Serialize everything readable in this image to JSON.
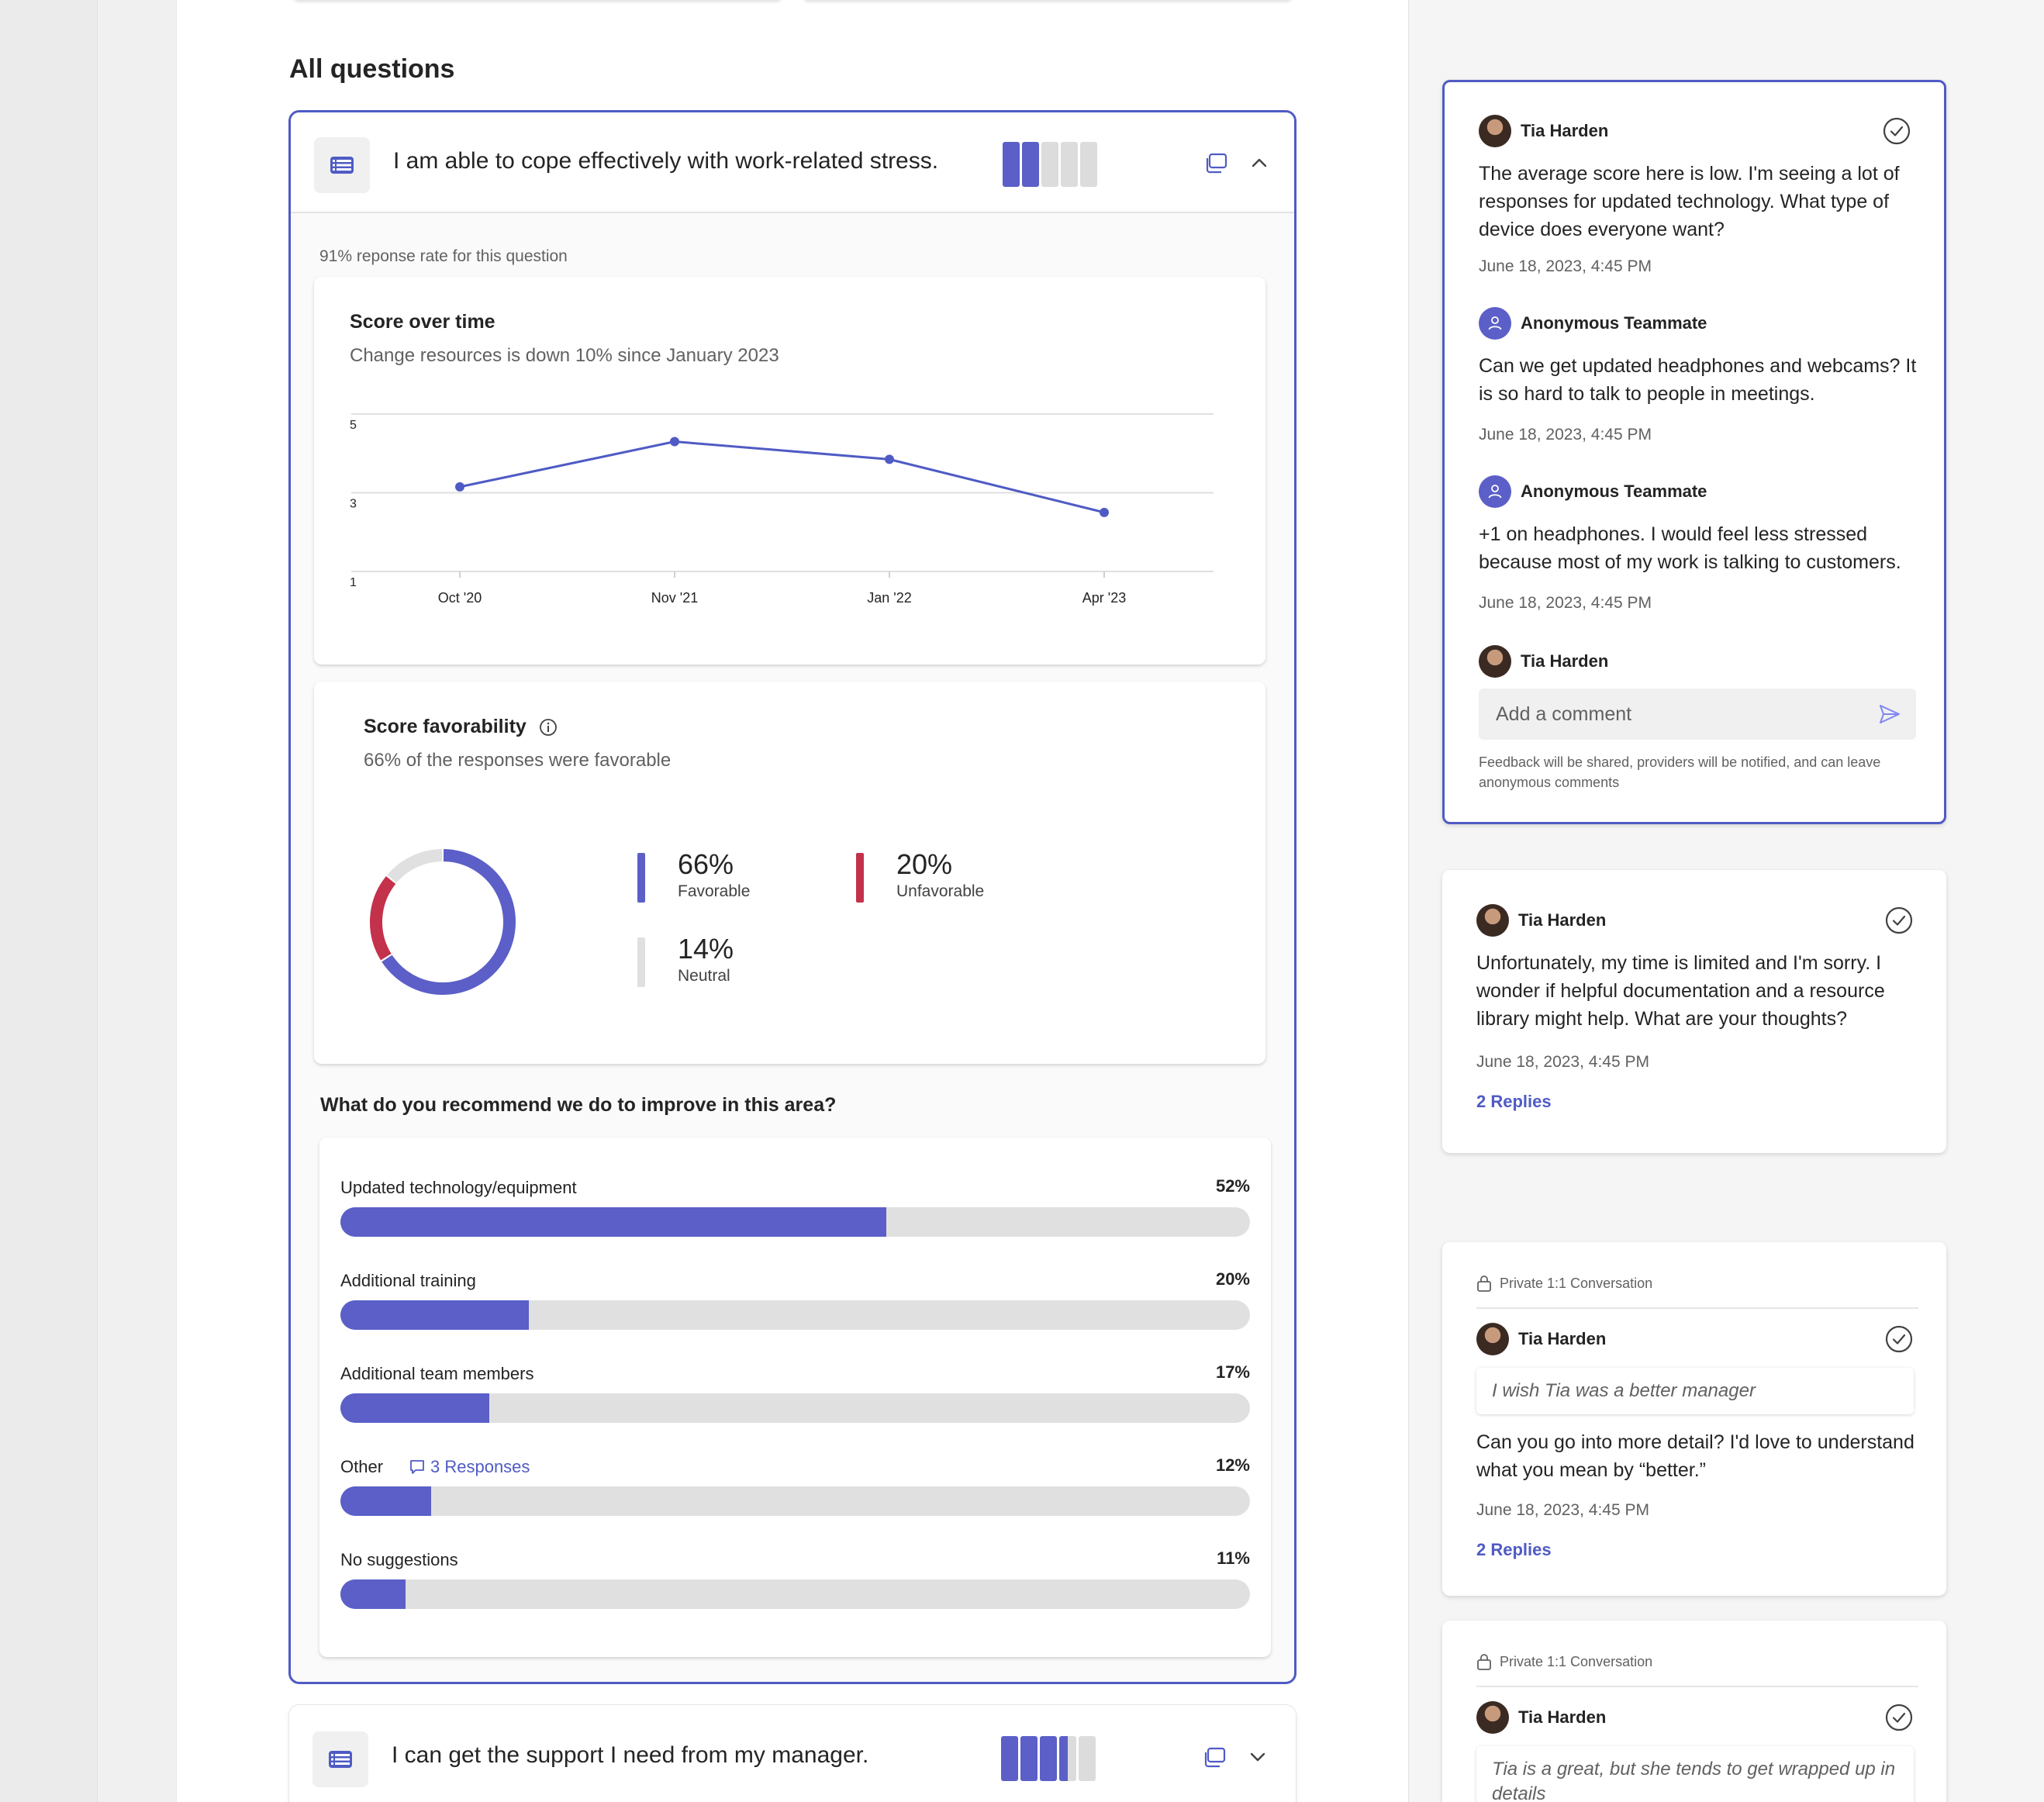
{
  "section_title": "All questions",
  "questions": [
    {
      "text": "I am able to cope effectively with work-related stress.",
      "expanded": true,
      "response_rate_text": "91% reponse rate for this question",
      "score_over_time": {
        "title": "Score over time",
        "subtitle": "Change resources is down 10% since January 2023"
      },
      "favorability": {
        "title": "Score favorability",
        "subtitle": "66% of the responses were favorable",
        "favorable": {
          "value": "66%",
          "label": "Favorable"
        },
        "unfavorable": {
          "value": "20%",
          "label": "Unfavorable"
        },
        "neutral": {
          "value": "14%",
          "label": "Neutral"
        }
      },
      "recommend": {
        "title": "What do you recommend we do to improve in this area?",
        "items": [
          {
            "label": "Updated technology/equipment",
            "pct": "52%",
            "fill": 0.6
          },
          {
            "label": "Additional training",
            "pct": "20%",
            "fill": 0.207
          },
          {
            "label": "Additional team members",
            "pct": "17%",
            "fill": 0.164
          },
          {
            "label": "Other",
            "pct": "12%",
            "fill": 0.1,
            "extra": "3 Responses"
          },
          {
            "label": "No suggestions",
            "pct": "11%",
            "fill": 0.072
          }
        ]
      }
    },
    {
      "text": "I can get the support I need from my manager.",
      "expanded": false
    }
  ],
  "chart_data": [
    {
      "type": "line",
      "title": "Score over time",
      "categories": [
        "Oct '20",
        "Nov '21",
        "Jan '22",
        "Apr '23"
      ],
      "values": [
        3.15,
        4.3,
        3.85,
        2.5
      ],
      "yticks": [
        "1",
        "3",
        "5"
      ],
      "ylim": [
        1,
        5
      ],
      "grid": true,
      "color": "#4f5bc4"
    },
    {
      "type": "pie",
      "title": "Score favorability",
      "labels": [
        "Favorable",
        "Unfavorable",
        "Neutral"
      ],
      "values": [
        66,
        20,
        14
      ],
      "colors": [
        "#5b5fc7",
        "#c4314b",
        "#e0e0e0"
      ]
    }
  ],
  "threads": [
    {
      "comments": [
        {
          "author": "Tia Harden",
          "avatar": "photo",
          "body": "The average score here is low. I'm seeing a lot of responses for updated technology. What type of device does everyone want?",
          "time": "June 18, 2023, 4:45 PM"
        },
        {
          "author": "Anonymous Teammate",
          "avatar": "anon",
          "body": "Can we get updated headphones and webcams? It is so hard to talk to people in meetings.",
          "time": "June 18, 2023, 4:45 PM"
        },
        {
          "author": "Anonymous Teammate",
          "avatar": "anon",
          "body": "+1 on headphones. I would feel less stressed because most of my work is talking to customers.",
          "time": "June 18, 2023, 4:45 PM"
        }
      ],
      "reply_author": "Tia Harden",
      "input_placeholder": "Add a comment",
      "note": "Feedback will be shared, providers will be notified, and can leave anonymous comments"
    },
    {
      "author": "Tia Harden",
      "body": "Unfortunately, my time is limited and I'm sorry. I wonder if helpful documentation and a resource library might help. What are your thoughts?",
      "time": "June 18, 2023, 4:45 PM",
      "replies": "2 Replies"
    },
    {
      "private_label": "Private 1:1 Conversation",
      "author": "Tia Harden",
      "quote": "I wish Tia was a better manager",
      "body": "Can you go into more detail? I'd love to understand what you mean by “better.”",
      "time": "June 18, 2023, 4:45 PM",
      "replies": "2 Replies"
    },
    {
      "private_label": "Private 1:1 Conversation",
      "author": "Tia Harden",
      "quote": "Tia is a great, but she tends to get wrapped up in details"
    }
  ],
  "icons": {
    "question_type": "list-icon",
    "comments": "comment-icon",
    "collapse": "chevron-up-icon",
    "expand": "chevron-down-icon",
    "resolve": "check-circle-icon",
    "send": "send-icon",
    "lock": "lock-icon",
    "info": "info-icon",
    "anonymous": "person-icon"
  },
  "colors": {
    "accent": "#5b5fc7",
    "border_active": "#4f5bc4",
    "unfavorable": "#c4314b",
    "neutral": "#e0e0e0"
  }
}
